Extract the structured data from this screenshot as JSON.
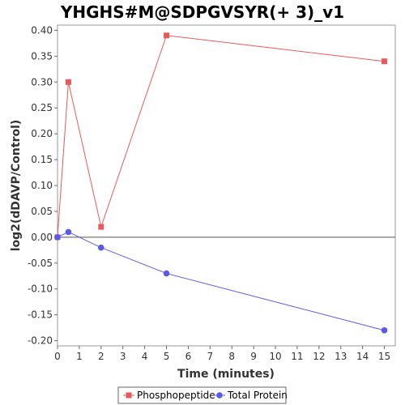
{
  "chart_data": {
    "type": "line",
    "title": "YHGHS#M@SDPGVSYR(+ 3)_v1",
    "xlabel": "Time (minutes)",
    "ylabel": "log2(dDAVP/Control)",
    "xlim": [
      0,
      15.5
    ],
    "ylim": [
      -0.21,
      0.41
    ],
    "x_ticks": [
      "0",
      "1",
      "2",
      "3",
      "4",
      "5",
      "6",
      "7",
      "8",
      "9",
      "10",
      "11",
      "12",
      "13",
      "14",
      "15"
    ],
    "y_ticks": [
      "0.40",
      "0.35",
      "0.30",
      "0.25",
      "0.20",
      "0.15",
      "0.10",
      "0.05",
      "0.00",
      "-0.05",
      "-0.10",
      "-0.15",
      "-0.20"
    ],
    "y_tick_values": [
      0.4,
      0.35,
      0.3,
      0.25,
      0.2,
      0.15,
      0.1,
      0.05,
      0.0,
      -0.05,
      -0.1,
      -0.15,
      -0.2
    ],
    "x_tick_values": [
      0,
      1,
      2,
      3,
      4,
      5,
      6,
      7,
      8,
      9,
      10,
      11,
      12,
      13,
      14,
      15
    ],
    "zero_line": true,
    "grid": false,
    "legend_position": "bottom-center",
    "series": [
      {
        "name": "Phosphopeptide",
        "color": "#e85a5a",
        "marker": "square",
        "x": [
          0,
          0.5,
          2,
          5,
          15
        ],
        "y": [
          0.0,
          0.3,
          0.02,
          0.39,
          0.34
        ]
      },
      {
        "name": "Total Protein",
        "color": "#5a5ae8",
        "marker": "circle",
        "x": [
          0,
          0.5,
          2,
          5,
          15
        ],
        "y": [
          0.0,
          0.01,
          -0.02,
          -0.07,
          -0.18
        ]
      }
    ]
  }
}
